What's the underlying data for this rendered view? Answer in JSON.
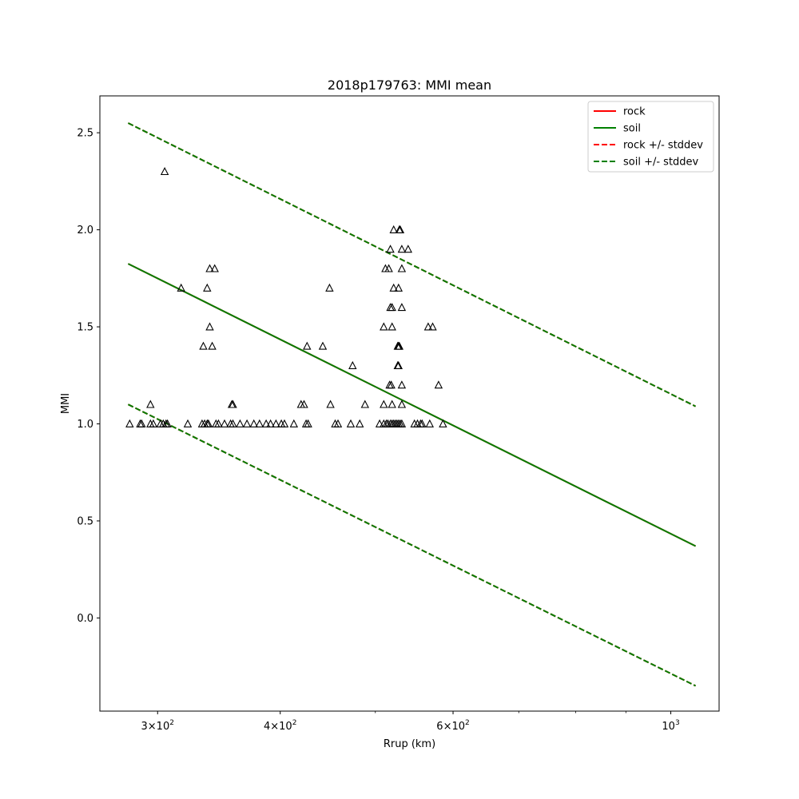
{
  "chart_data": {
    "type": "scatter",
    "title": "2018p179763: MMI mean",
    "xlabel": "Rrup (km)",
    "ylabel": "MMI",
    "xscale": "log",
    "xlim": [
      262,
      1120
    ],
    "ylim": [
      -0.48,
      2.69
    ],
    "grid": false,
    "legend_position": "top-right",
    "x_ticks": [
      {
        "value": 300,
        "base": "3×10",
        "exp": "2"
      },
      {
        "value": 400,
        "base": "4×10",
        "exp": "2"
      },
      {
        "value": 600,
        "base": "6×10",
        "exp": "2"
      },
      {
        "value": 1000,
        "base": "10",
        "exp": "3"
      }
    ],
    "x_minor_ticks": [
      500,
      700,
      800,
      900
    ],
    "y_ticks": [
      "0.0",
      "0.5",
      "1.0",
      "1.5",
      "2.0",
      "2.5"
    ],
    "lines": [
      {
        "name": "rock",
        "color": "#ff0000",
        "dash": false,
        "points": [
          [
            280,
            1.825
          ],
          [
            1060,
            0.37
          ]
        ]
      },
      {
        "name": "soil",
        "color": "#008000",
        "dash": false,
        "points": [
          [
            280,
            1.825
          ],
          [
            1060,
            0.37
          ]
        ]
      },
      {
        "name": "rock +/- stddev",
        "color": "#ff0000",
        "dash": true,
        "points": [
          [
            280,
            2.55
          ],
          [
            1060,
            1.09
          ]
        ]
      },
      {
        "name": "rock +/- stddev",
        "color": "#ff0000",
        "dash": true,
        "points": [
          [
            280,
            1.1
          ],
          [
            1060,
            -0.35
          ]
        ]
      },
      {
        "name": "soil +/- stddev",
        "color": "#008000",
        "dash": true,
        "points": [
          [
            280,
            2.55
          ],
          [
            1060,
            1.09
          ]
        ]
      },
      {
        "name": "soil +/- stddev",
        "color": "#008000",
        "dash": true,
        "points": [
          [
            280,
            1.1
          ],
          [
            1060,
            -0.35
          ]
        ]
      }
    ],
    "legend": [
      {
        "label": "rock",
        "color": "#ff0000",
        "dash": false
      },
      {
        "label": "soil",
        "color": "#008000",
        "dash": false
      },
      {
        "label": "rock +/- stddev",
        "color": "#ff0000",
        "dash": true
      },
      {
        "label": "soil +/- stddev",
        "color": "#008000",
        "dash": true
      }
    ],
    "observations": {
      "marker": "triangle",
      "points": [
        [
          281,
          1.0
        ],
        [
          288,
          1.0
        ],
        [
          289,
          1.0
        ],
        [
          295,
          1.0
        ],
        [
          297,
          1.0
        ],
        [
          302,
          1.0
        ],
        [
          304,
          1.0
        ],
        [
          306,
          1.0
        ],
        [
          307,
          1.0
        ],
        [
          322,
          1.0
        ],
        [
          333,
          1.0
        ],
        [
          335,
          1.0
        ],
        [
          337,
          1.0
        ],
        [
          338,
          1.0
        ],
        [
          344,
          1.0
        ],
        [
          346,
          1.0
        ],
        [
          351,
          1.0
        ],
        [
          356,
          1.0
        ],
        [
          358,
          1.0
        ],
        [
          364,
          1.0
        ],
        [
          370,
          1.0
        ],
        [
          376,
          1.0
        ],
        [
          381,
          1.0
        ],
        [
          387,
          1.0
        ],
        [
          391,
          1.0
        ],
        [
          396,
          1.0
        ],
        [
          401,
          1.0
        ],
        [
          404,
          1.0
        ],
        [
          413,
          1.0
        ],
        [
          425,
          1.0
        ],
        [
          427,
          1.0
        ],
        [
          455,
          1.0
        ],
        [
          458,
          1.0
        ],
        [
          472,
          1.0
        ],
        [
          482,
          1.0
        ],
        [
          505,
          1.0
        ],
        [
          510,
          1.0
        ],
        [
          513,
          1.0
        ],
        [
          515,
          1.0
        ],
        [
          518,
          1.0
        ],
        [
          520,
          1.0
        ],
        [
          522,
          1.0
        ],
        [
          524,
          1.0
        ],
        [
          526,
          1.0
        ],
        [
          528,
          1.0
        ],
        [
          530,
          1.0
        ],
        [
          532,
          1.0
        ],
        [
          548,
          1.0
        ],
        [
          552,
          1.0
        ],
        [
          556,
          1.0
        ],
        [
          558,
          1.0
        ],
        [
          568,
          1.0
        ],
        [
          586,
          1.0
        ],
        [
          295,
          1.1
        ],
        [
          357,
          1.1
        ],
        [
          358,
          1.1
        ],
        [
          420,
          1.1
        ],
        [
          423,
          1.1
        ],
        [
          450,
          1.1
        ],
        [
          488,
          1.1
        ],
        [
          510,
          1.1
        ],
        [
          520,
          1.1
        ],
        [
          532,
          1.1
        ],
        [
          517,
          1.2
        ],
        [
          519,
          1.2
        ],
        [
          532,
          1.2
        ],
        [
          580,
          1.2
        ],
        [
          474,
          1.3
        ],
        [
          527,
          1.3
        ],
        [
          528,
          1.3
        ],
        [
          426,
          1.4
        ],
        [
          442,
          1.4
        ],
        [
          334,
          1.4
        ],
        [
          341,
          1.4
        ],
        [
          527,
          1.4
        ],
        [
          528,
          1.4
        ],
        [
          529,
          1.4
        ],
        [
          339,
          1.5
        ],
        [
          510,
          1.5
        ],
        [
          520,
          1.5
        ],
        [
          566,
          1.5
        ],
        [
          572,
          1.5
        ],
        [
          518,
          1.6
        ],
        [
          520,
          1.6
        ],
        [
          532,
          1.6
        ],
        [
          317,
          1.7
        ],
        [
          337,
          1.7
        ],
        [
          449,
          1.7
        ],
        [
          522,
          1.7
        ],
        [
          528,
          1.7
        ],
        [
          339,
          1.8
        ],
        [
          343,
          1.8
        ],
        [
          512,
          1.8
        ],
        [
          516,
          1.8
        ],
        [
          532,
          1.8
        ],
        [
          518,
          1.9
        ],
        [
          532,
          1.9
        ],
        [
          540,
          1.9
        ],
        [
          522,
          2.0
        ],
        [
          529,
          2.0
        ],
        [
          530,
          2.0
        ],
        [
          305,
          2.3
        ]
      ]
    }
  }
}
